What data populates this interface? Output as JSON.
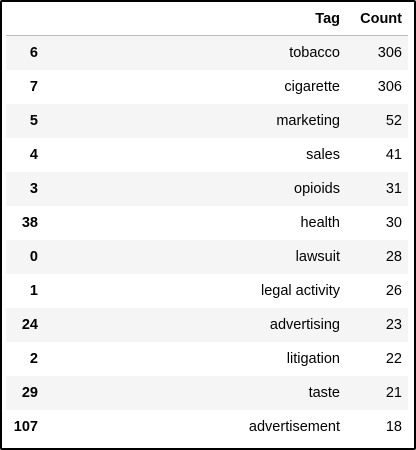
{
  "table": {
    "index_header": "",
    "columns": [
      "Tag",
      "Count"
    ],
    "rows": [
      {
        "index": "6",
        "tag": "tobacco",
        "count": "306"
      },
      {
        "index": "7",
        "tag": "cigarette",
        "count": "306"
      },
      {
        "index": "5",
        "tag": "marketing",
        "count": "52"
      },
      {
        "index": "4",
        "tag": "sales",
        "count": "41"
      },
      {
        "index": "3",
        "tag": "opioids",
        "count": "31"
      },
      {
        "index": "38",
        "tag": "health",
        "count": "30"
      },
      {
        "index": "0",
        "tag": "lawsuit",
        "count": "28"
      },
      {
        "index": "1",
        "tag": "legal activity",
        "count": "26"
      },
      {
        "index": "24",
        "tag": "advertising",
        "count": "23"
      },
      {
        "index": "2",
        "tag": "litigation",
        "count": "22"
      },
      {
        "index": "29",
        "tag": "taste",
        "count": "21"
      },
      {
        "index": "107",
        "tag": "advertisement",
        "count": "18"
      }
    ]
  }
}
